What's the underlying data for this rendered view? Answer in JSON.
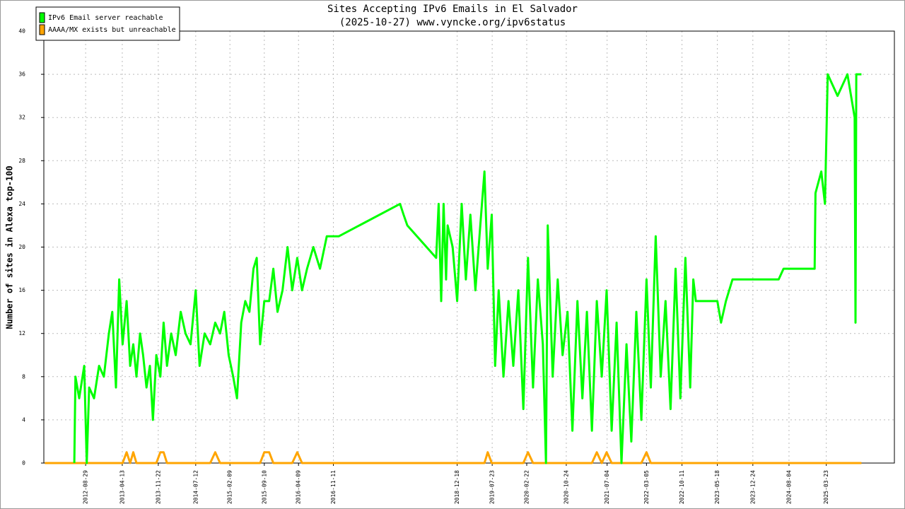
{
  "chart_data": {
    "type": "line",
    "title": "Sites Accepting IPv6 Emails in El Salvador",
    "subtitle": "(2025-10-27) www.vyncke.org/ipv6status",
    "y_label": "Number of sites in Alexa top-100",
    "x": [
      "2011-12-20",
      "2012-06-20",
      "2012-06-27",
      "2012-07-20",
      "2012-08-20",
      "2012-09-05",
      "2012-09-20",
      "2012-10-20",
      "2012-11-20",
      "2012-12-20",
      "2013-01-20",
      "2013-02-10",
      "2013-03-05",
      "2013-03-25",
      "2013-04-15",
      "2013-05-10",
      "2013-06-01",
      "2013-06-20",
      "2013-07-10",
      "2013-08-01",
      "2013-08-20",
      "2013-09-10",
      "2013-10-01",
      "2013-10-20",
      "2013-11-10",
      "2013-12-05",
      "2013-12-25",
      "2014-01-15",
      "2014-02-10",
      "2014-03-10",
      "2014-04-10",
      "2014-05-10",
      "2014-06-10",
      "2014-07-12",
      "2014-08-05",
      "2014-09-05",
      "2014-10-10",
      "2014-11-10",
      "2014-12-10",
      "2015-01-05",
      "2015-02-01",
      "2015-03-01",
      "2015-03-25",
      "2015-04-20",
      "2015-05-15",
      "2015-06-10",
      "2015-07-05",
      "2015-07-25",
      "2015-08-15",
      "2015-09-10",
      "2015-10-10",
      "2015-11-05",
      "2015-12-01",
      "2016-01-01",
      "2016-02-01",
      "2016-03-01",
      "2016-04-01",
      "2016-05-01",
      "2016-06-01",
      "2016-07-10",
      "2016-08-20",
      "2016-10-01",
      "2016-12-15",
      "2017-12-29",
      "2018-01-20",
      "2018-02-12",
      "2018-08-10",
      "2018-08-25",
      "2018-09-10",
      "2018-09-25",
      "2018-10-10",
      "2018-10-20",
      "2018-11-20",
      "2018-12-18",
      "2019-01-15",
      "2019-02-10",
      "2019-03-10",
      "2019-04-10",
      "2019-05-10",
      "2019-06-05",
      "2019-06-25",
      "2019-07-20",
      "2019-08-10",
      "2019-09-01",
      "2019-10-01",
      "2019-11-01",
      "2019-12-01",
      "2020-01-01",
      "2020-02-01",
      "2020-03-01",
      "2020-04-01",
      "2020-05-01",
      "2020-06-01",
      "2020-06-20",
      "2020-07-01",
      "2020-08-01",
      "2020-09-01",
      "2020-10-01",
      "2020-11-01",
      "2020-12-01",
      "2021-01-01",
      "2021-02-01",
      "2021-03-01",
      "2021-04-01",
      "2021-05-01",
      "2021-06-01",
      "2021-07-01",
      "2021-08-01",
      "2021-09-01",
      "2021-10-01",
      "2021-11-01",
      "2021-12-01",
      "2022-01-01",
      "2022-02-01",
      "2022-03-05",
      "2022-04-01",
      "2022-05-01",
      "2022-06-01",
      "2022-07-01",
      "2022-08-01",
      "2022-09-01",
      "2022-10-01",
      "2022-11-01",
      "2022-12-01",
      "2022-12-20",
      "2023-01-05",
      "2023-05-18",
      "2023-06-10",
      "2023-07-10",
      "2023-08-20",
      "2024-06-01",
      "2024-07-01",
      "2025-01-10",
      "2025-01-15",
      "2025-02-20",
      "2025-03-15",
      "2025-04-01",
      "2025-06-01",
      "2025-08-01",
      "2025-09-15",
      "2025-09-20",
      "2025-09-25",
      "2025-10-27"
    ],
    "series": [
      {
        "name": "IPv6 Email server reachable",
        "color": "#00ff00",
        "values": [
          null,
          0,
          8,
          6,
          9,
          0,
          7,
          6,
          9,
          8,
          12,
          14,
          7,
          17,
          11,
          15,
          9,
          11,
          8,
          12,
          10,
          7,
          9,
          4,
          10,
          8,
          13,
          9,
          12,
          10,
          14,
          12,
          11,
          16,
          9,
          12,
          11,
          13,
          12,
          14,
          10,
          8,
          6,
          13,
          15,
          14,
          18,
          19,
          11,
          15,
          15,
          18,
          14,
          16,
          20,
          16,
          19,
          16,
          18,
          20,
          18,
          21,
          21,
          24,
          23,
          22,
          19,
          24,
          15,
          24,
          17,
          22,
          20,
          15,
          24,
          17,
          23,
          16,
          22,
          27,
          18,
          23,
          9,
          16,
          8,
          15,
          9,
          16,
          5,
          19,
          7,
          17,
          11,
          0,
          22,
          8,
          17,
          10,
          14,
          3,
          15,
          6,
          14,
          3,
          15,
          8,
          16,
          3,
          13,
          0,
          11,
          2,
          14,
          4,
          17,
          7,
          21,
          8,
          15,
          5,
          18,
          6,
          19,
          7,
          17,
          15,
          15,
          13,
          15,
          17,
          17,
          18,
          18,
          25,
          27,
          24,
          36,
          34,
          36,
          32,
          13,
          36,
          36
        ]
      },
      {
        "name": "AAAA/MX exists but unreachable",
        "color": "#ffa500",
        "values": [
          0,
          0,
          0,
          0,
          0,
          0,
          0,
          0,
          0,
          0,
          0,
          0,
          0,
          0,
          0,
          1,
          0,
          1,
          0,
          0,
          0,
          0,
          0,
          0,
          0,
          1,
          1,
          0,
          0,
          0,
          0,
          0,
          0,
          0,
          0,
          0,
          0,
          1,
          0,
          0,
          0,
          0,
          0,
          0,
          0,
          0,
          0,
          0,
          0,
          1,
          1,
          0,
          0,
          0,
          0,
          0,
          1,
          0,
          0,
          0,
          0,
          0,
          0,
          0,
          0,
          0,
          0,
          0,
          0,
          0,
          0,
          0,
          0,
          0,
          0,
          0,
          0,
          0,
          0,
          0,
          1,
          0,
          0,
          0,
          0,
          0,
          0,
          0,
          0,
          1,
          0,
          0,
          0,
          0,
          0,
          0,
          0,
          0,
          0,
          0,
          0,
          0,
          0,
          0,
          1,
          0,
          1,
          0,
          0,
          0,
          0,
          0,
          0,
          0,
          1,
          0,
          0,
          0,
          0,
          0,
          0,
          0,
          0,
          0,
          0,
          0,
          0,
          0,
          0,
          0,
          0,
          0,
          0,
          0,
          0,
          0,
          0,
          0,
          0,
          0,
          0,
          0,
          0
        ]
      }
    ],
    "xlim": [
      "2011-12-14",
      "2026-05-19"
    ],
    "xticks": [
      "2012-08-29",
      "2013-04-13",
      "2013-11-22",
      "2014-07-12",
      "2015-02-09",
      "2015-09-10",
      "2016-04-09",
      "2016-11-11",
      "2018-12-18",
      "2019-07-23",
      "2020-02-22",
      "2020-10-24",
      "2021-07-04",
      "2022-03-05",
      "2022-10-11",
      "2023-05-18",
      "2023-12-24",
      "2024-08-04",
      "2025-03-23"
    ],
    "ylim": [
      0,
      40
    ],
    "yticks": [
      0,
      4,
      8,
      12,
      16,
      20,
      24,
      28,
      32,
      36,
      40
    ],
    "grid": true,
    "legend": "upper left"
  }
}
